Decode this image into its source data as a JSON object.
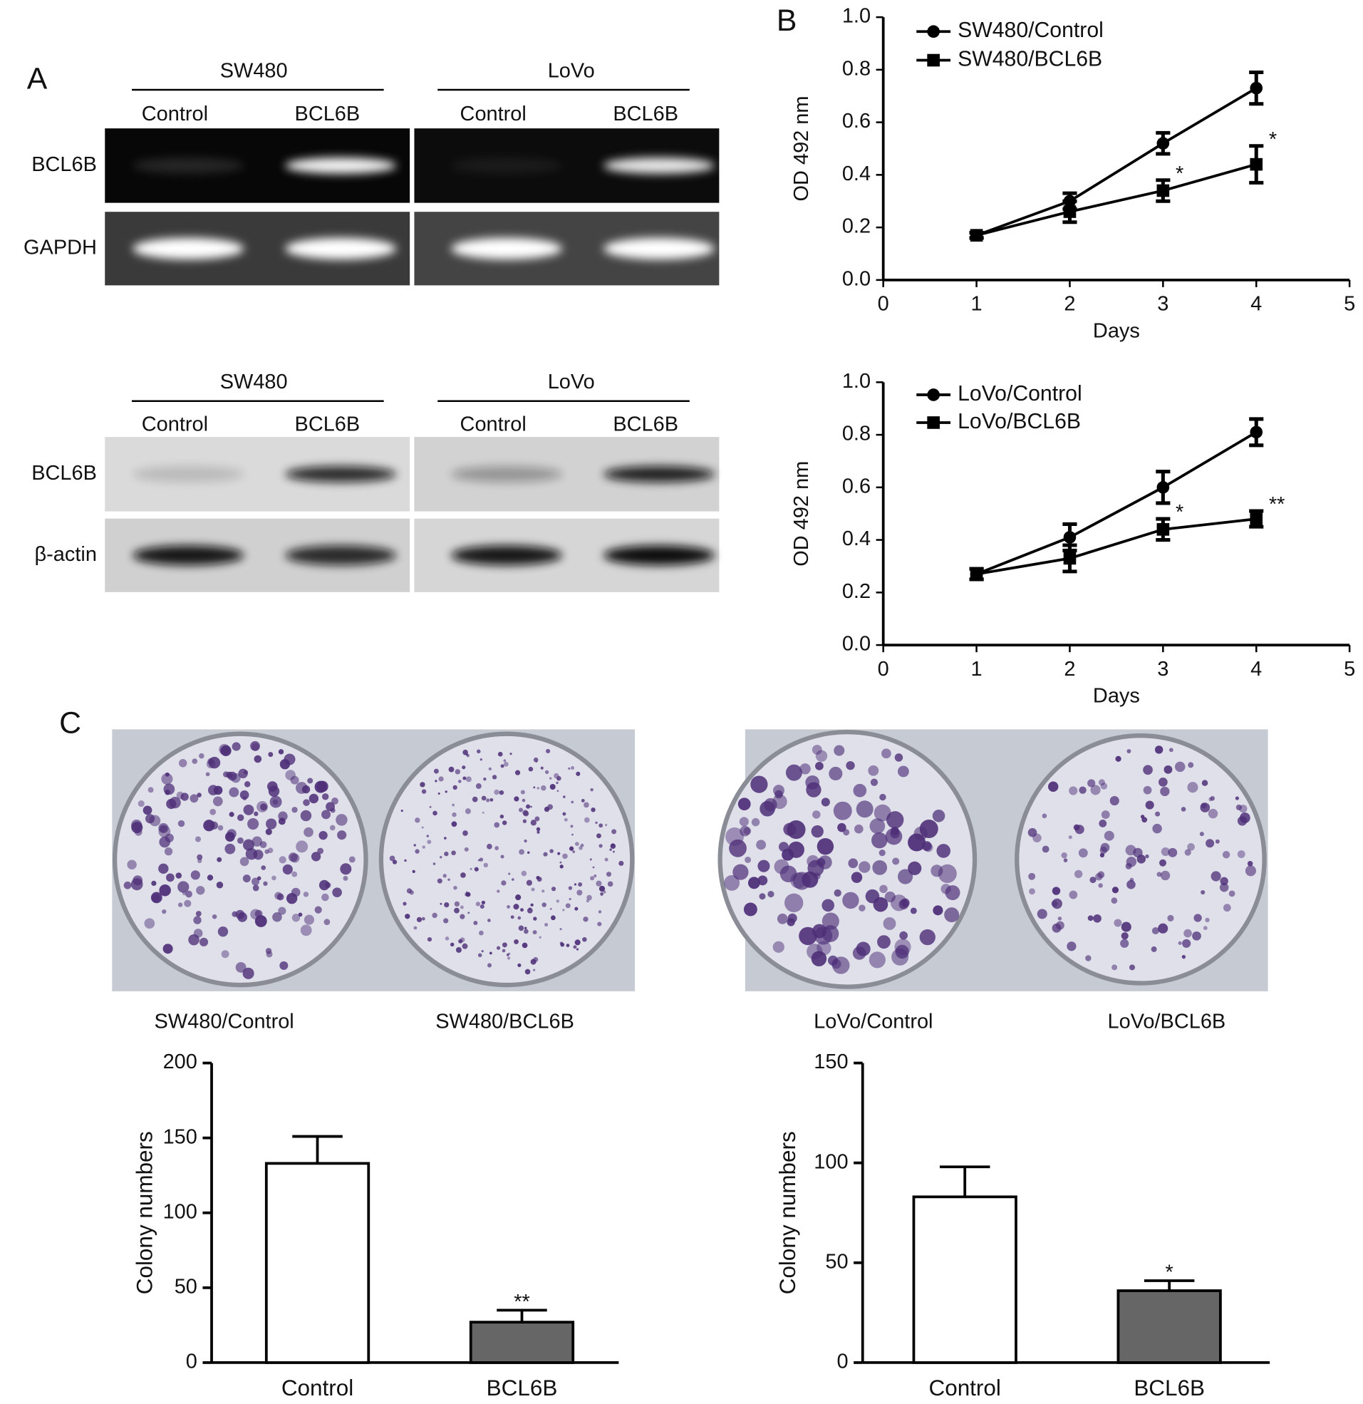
{
  "panels": [
    "A",
    "B",
    "C"
  ],
  "gels": [
    {
      "groups": [
        "SW480",
        "LoVo"
      ],
      "lanes": [
        "Control",
        "BCL6B",
        "Control",
        "BCL6B"
      ],
      "rows": [
        "BCL6B",
        "GAPDH"
      ]
    },
    {
      "groups": [
        "SW480",
        "LoVo"
      ],
      "lanes": [
        "Control",
        "BCL6B",
        "Control",
        "BCL6B"
      ],
      "rows": [
        "BCL6B",
        "β-actin"
      ]
    }
  ],
  "plates": [
    "SW480/Control",
    "SW480/BCL6B",
    "LoVo/Control",
    "LoVo/BCL6B"
  ],
  "chart_data": [
    {
      "type": "line",
      "xlabel": "Days",
      "ylabel": "OD 492 nm",
      "xlim": [
        0,
        5
      ],
      "xticks": [
        0,
        1,
        2,
        3,
        4,
        5
      ],
      "ylim": [
        0,
        1
      ],
      "yticks": [
        {
          "value": 0,
          "label": "0.0"
        },
        0.2,
        0.4,
        0.6,
        0.8,
        {
          "value": 1,
          "label": "1.0"
        }
      ],
      "x": [
        1,
        2,
        3,
        4
      ],
      "series": [
        {
          "name": "SW480/Control",
          "color": "#000000",
          "marker": "circle",
          "values": [
            0.17,
            0.3,
            0.52,
            0.73
          ],
          "errors": [
            0.01,
            0.03,
            0.04,
            0.06
          ]
        },
        {
          "name": "SW480/BCL6B",
          "color": "#000000",
          "marker": "square",
          "values": [
            0.17,
            0.26,
            0.34,
            0.44
          ],
          "errors": [
            0.01,
            0.04,
            0.04,
            0.07
          ],
          "annotations": [
            null,
            null,
            "*",
            "*"
          ]
        }
      ]
    },
    {
      "type": "line",
      "xlabel": "Days",
      "ylabel": "OD 492 nm",
      "xlim": [
        0,
        5
      ],
      "xticks": [
        0,
        1,
        2,
        3,
        4,
        5
      ],
      "ylim": [
        0,
        1
      ],
      "yticks": [
        {
          "value": 0,
          "label": "0.0"
        },
        0.2,
        0.4,
        0.6,
        0.8,
        {
          "value": 1,
          "label": "1.0"
        }
      ],
      "x": [
        1,
        2,
        3,
        4
      ],
      "series": [
        {
          "name": "LoVo/Control",
          "color": "#000000",
          "marker": "circle",
          "values": [
            0.27,
            0.41,
            0.6,
            0.81
          ],
          "errors": [
            0.02,
            0.05,
            0.06,
            0.05
          ]
        },
        {
          "name": "LoVo/BCL6B",
          "color": "#000000",
          "marker": "square",
          "values": [
            0.27,
            0.33,
            0.44,
            0.48
          ],
          "errors": [
            0.02,
            0.05,
            0.04,
            0.03
          ],
          "annotations": [
            null,
            null,
            "*",
            "**"
          ]
        }
      ]
    },
    {
      "type": "bar",
      "ylabel": "Colony numbers",
      "categories": [
        "Control",
        "BCL6B"
      ],
      "values": [
        133,
        27
      ],
      "errors": [
        18,
        8
      ],
      "annotations": [
        null,
        "**"
      ],
      "colors": [
        "#ffffff",
        "#666666"
      ],
      "ylim": [
        0,
        200
      ],
      "yticks": [
        0,
        50,
        100,
        150,
        200
      ]
    },
    {
      "type": "bar",
      "ylabel": "Colony numbers",
      "categories": [
        "Control",
        "BCL6B"
      ],
      "values": [
        83,
        36
      ],
      "errors": [
        15,
        5
      ],
      "annotations": [
        null,
        "*"
      ],
      "colors": [
        "#ffffff",
        "#666666"
      ],
      "ylim": [
        0,
        150
      ],
      "yticks": [
        0,
        50,
        100,
        150
      ]
    }
  ]
}
